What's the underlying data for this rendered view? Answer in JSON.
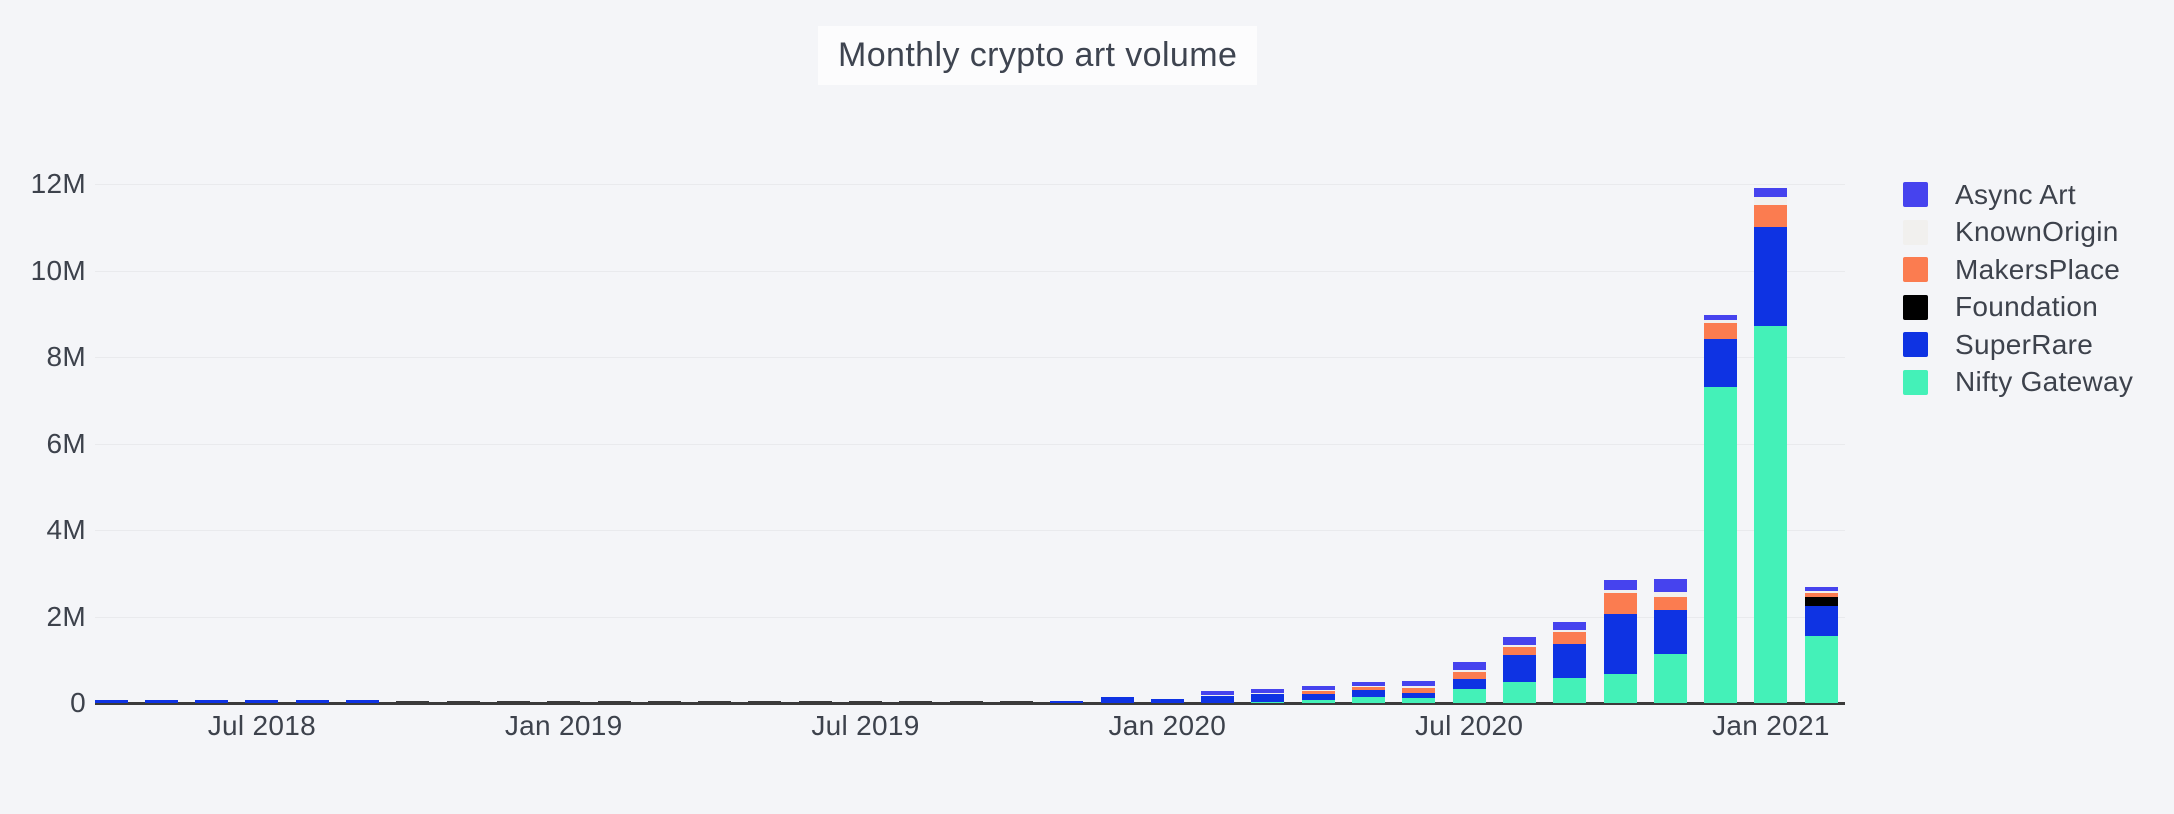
{
  "title": "Monthly crypto art volume",
  "colors": {
    "background": "#f4f5f8",
    "title_background": "#fcfcfd",
    "text": "#3d424c",
    "gridline": "#e9eaed",
    "axis_line": "#3b3b3b",
    "near_zero_bar": "#3a3a3a"
  },
  "legend": {
    "position": "right",
    "items": [
      {
        "label": "Async Art",
        "color": "#4643ee"
      },
      {
        "label": "KnownOrigin",
        "color": "#f1f0ee"
      },
      {
        "label": "MakersPlace",
        "color": "#fb7c50"
      },
      {
        "label": "Foundation",
        "color": "#000000"
      },
      {
        "label": "SuperRare",
        "color": "#0e33e3"
      },
      {
        "label": "Nifty Gateway",
        "color": "#44f1b8"
      }
    ]
  },
  "chart_data": {
    "type": "bar",
    "stacked": true,
    "title": "Monthly crypto art volume",
    "xlabel": "",
    "ylabel": "",
    "unit": "millions USD",
    "ylim": [
      0,
      12
    ],
    "grid": true,
    "legend_position": "right",
    "y_ticks": [
      {
        "value": 0,
        "label": "0"
      },
      {
        "value": 2,
        "label": "2M"
      },
      {
        "value": 4,
        "label": "4M"
      },
      {
        "value": 6,
        "label": "6M"
      },
      {
        "value": 8,
        "label": "8M"
      },
      {
        "value": 10,
        "label": "10M"
      },
      {
        "value": 12,
        "label": "12M"
      }
    ],
    "x_ticks": [
      {
        "index": 3,
        "label": "Jul 2018"
      },
      {
        "index": 9,
        "label": "Jan 2019"
      },
      {
        "index": 15,
        "label": "Jul 2019"
      },
      {
        "index": 21,
        "label": "Jan 2020"
      },
      {
        "index": 27,
        "label": "Jul 2020"
      },
      {
        "index": 33,
        "label": "Jan 2021"
      }
    ],
    "categories": [
      "Apr 2018",
      "May 2018",
      "Jun 2018",
      "Jul 2018",
      "Aug 2018",
      "Sep 2018",
      "Oct 2018",
      "Nov 2018",
      "Dec 2018",
      "Jan 2019",
      "Feb 2019",
      "Mar 2019",
      "Apr 2019",
      "May 2019",
      "Jun 2019",
      "Jul 2019",
      "Aug 2019",
      "Sep 2019",
      "Oct 2019",
      "Nov 2019",
      "Dec 2019",
      "Jan 2020",
      "Feb 2020",
      "Mar 2020",
      "Apr 2020",
      "May 2020",
      "Jun 2020",
      "Jul 2020",
      "Aug 2020",
      "Sep 2020",
      "Oct 2020",
      "Nov 2020",
      "Dec 2020",
      "Jan 2021",
      "Feb 2021"
    ],
    "stack_order_note": "series listed bottom-to-top of stack; legend shows reverse order",
    "series": [
      {
        "name": "Nifty Gateway",
        "color": "#44f1b8",
        "values": [
          0,
          0,
          0,
          0,
          0,
          0,
          0,
          0,
          0,
          0,
          0,
          0,
          0,
          0,
          0,
          0,
          0,
          0,
          0,
          0,
          0,
          0,
          0,
          0.02,
          0.07,
          0.13,
          0.12,
          0.33,
          0.48,
          0.58,
          0.68,
          1.14,
          7.31,
          8.72,
          1.55
        ]
      },
      {
        "name": "SuperRare",
        "color": "#0e33e3",
        "values": [
          0.065,
          0.065,
          0.07,
          0.07,
          0.07,
          0.065,
          0.02,
          0.02,
          0.02,
          0.02,
          0.02,
          0.02,
          0.02,
          0.02,
          0.02,
          0.02,
          0.02,
          0.02,
          0.025,
          0.05,
          0.13,
          0.09,
          0.16,
          0.19,
          0.15,
          0.17,
          0.11,
          0.23,
          0.64,
          0.79,
          1.37,
          1.01,
          1.11,
          2.28,
          0.69
        ]
      },
      {
        "name": "Foundation",
        "color": "#000000",
        "values": [
          0,
          0,
          0,
          0,
          0,
          0,
          0,
          0,
          0,
          0,
          0,
          0,
          0,
          0,
          0,
          0,
          0,
          0,
          0,
          0,
          0,
          0,
          0,
          0,
          0,
          0,
          0,
          0,
          0,
          0,
          0,
          0,
          0,
          0,
          0.21
        ]
      },
      {
        "name": "MakersPlace",
        "color": "#fb7c50",
        "values": [
          0,
          0,
          0,
          0,
          0,
          0,
          0,
          0,
          0,
          0,
          0,
          0,
          0,
          0,
          0,
          0,
          0,
          0,
          0,
          0,
          0,
          0,
          0,
          0,
          0.05,
          0.07,
          0.12,
          0.15,
          0.17,
          0.27,
          0.49,
          0.3,
          0.37,
          0.51,
          0.1
        ]
      },
      {
        "name": "KnownOrigin",
        "color": "#f1f0ee",
        "values": [
          0,
          0,
          0,
          0,
          0,
          0,
          0,
          0,
          0,
          0,
          0,
          0,
          0,
          0,
          0,
          0,
          0,
          0,
          0,
          0,
          0,
          0,
          0.03,
          0.03,
          0.03,
          0.03,
          0.05,
          0.05,
          0.06,
          0.05,
          0.08,
          0.12,
          0.07,
          0.19,
          0.05
        ]
      },
      {
        "name": "Async Art",
        "color": "#4643ee",
        "values": [
          0,
          0,
          0,
          0,
          0,
          0,
          0,
          0,
          0,
          0,
          0,
          0,
          0,
          0,
          0,
          0,
          0,
          0,
          0,
          0,
          0,
          0,
          0.09,
          0.09,
          0.09,
          0.09,
          0.12,
          0.19,
          0.17,
          0.18,
          0.22,
          0.3,
          0.12,
          0.2,
          0.08
        ]
      }
    ]
  }
}
